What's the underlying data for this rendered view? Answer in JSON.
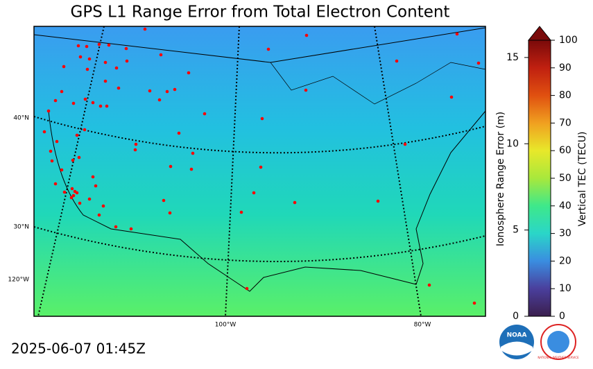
{
  "title": "GPS L1 Range Error from Total Electron Content",
  "timestamp": "2025-06-07 01:45Z",
  "map": {
    "lat_labels": [
      "40°N",
      "30°N",
      "120°W"
    ],
    "lon_labels": [
      "100°W",
      "80°W"
    ]
  },
  "colorbar": {
    "left_label": "Ionosphere Range Error (m)",
    "right_label": "Vertical TEC (TECU)",
    "left_lim": [
      0,
      16
    ],
    "left_ticks": [
      0,
      5,
      10,
      15
    ],
    "right_lim": [
      0,
      100
    ],
    "right_ticks": [
      0,
      10,
      20,
      30,
      40,
      50,
      60,
      70,
      80,
      90,
      100
    ]
  },
  "logos": {
    "noaa": "NOAA",
    "nws": "NATIONAL WEATHER SERVICE"
  }
}
